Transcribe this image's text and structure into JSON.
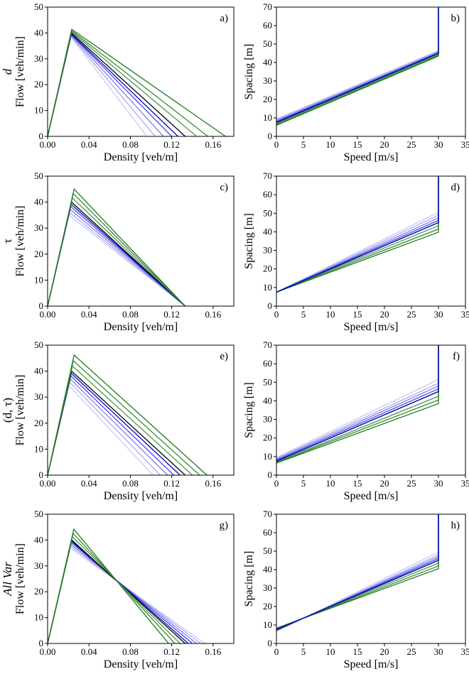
{
  "chart_data": [
    {
      "panel": "a)",
      "row_label": "d",
      "row_label_italic": true,
      "type": "line",
      "xlabel": "Density [veh/m]",
      "ylabel": "Flow [veh/min]",
      "xlim": [
        0,
        0.18
      ],
      "ylim": [
        0,
        50
      ],
      "xticks": [
        "0.00",
        "0.04",
        "0.08",
        "0.12",
        "0.16"
      ],
      "yticks": [
        "0",
        "10",
        "20",
        "30",
        "40",
        "50"
      ],
      "series": [
        {
          "color": "#c9c9f2",
          "x": [
            0,
            0.0225,
            0.096
          ],
          "y": [
            0,
            38.5,
            0
          ]
        },
        {
          "color": "#a9a9ee",
          "x": [
            0,
            0.0226,
            0.104
          ],
          "y": [
            0,
            38.8,
            0
          ]
        },
        {
          "color": "#7f7fe8",
          "x": [
            0,
            0.0227,
            0.112
          ],
          "y": [
            0,
            39.1,
            0
          ]
        },
        {
          "color": "#4848e0",
          "x": [
            0,
            0.0228,
            0.12
          ],
          "y": [
            0,
            39.4,
            0
          ]
        },
        {
          "color": "#0000cc",
          "x": [
            0,
            0.0229,
            0.126
          ],
          "y": [
            0,
            39.6,
            0
          ]
        },
        {
          "color": "#000000",
          "x": [
            0,
            0.023,
            0.133
          ],
          "y": [
            0,
            40.0,
            0
          ]
        },
        {
          "color": "#4a9a4a",
          "x": [
            0,
            0.0231,
            0.144
          ],
          "y": [
            0,
            40.5,
            0
          ]
        },
        {
          "color": "#3a8a3a",
          "x": [
            0,
            0.0232,
            0.155
          ],
          "y": [
            0,
            40.9,
            0
          ]
        },
        {
          "color": "#1f7a1f",
          "x": [
            0,
            0.0233,
            0.172
          ],
          "y": [
            0,
            41.4,
            0
          ]
        }
      ]
    },
    {
      "panel": "b)",
      "type": "line",
      "xlabel": "Speed [m/s]",
      "ylabel": "Spacing [m]",
      "xlim": [
        0,
        35
      ],
      "ylim": [
        0,
        70
      ],
      "xticks": [
        "0",
        "5",
        "10",
        "15",
        "20",
        "25",
        "30",
        "35"
      ],
      "yticks": [
        "0",
        "10",
        "20",
        "30",
        "40",
        "50",
        "60",
        "70"
      ],
      "series": [
        {
          "color": "#c9c9f2",
          "x": [
            0,
            30,
            30
          ],
          "y": [
            9.5,
            46.5,
            70
          ]
        },
        {
          "color": "#a9a9ee",
          "x": [
            0,
            30,
            30
          ],
          "y": [
            9.0,
            46.0,
            70
          ]
        },
        {
          "color": "#7f7fe8",
          "x": [
            0,
            30,
            30
          ],
          "y": [
            8.5,
            45.6,
            70
          ]
        },
        {
          "color": "#4848e0",
          "x": [
            0,
            30,
            30
          ],
          "y": [
            8.0,
            45.2,
            70
          ]
        },
        {
          "color": "#000000",
          "x": [
            0,
            30,
            30
          ],
          "y": [
            7.5,
            45.0,
            70
          ]
        },
        {
          "color": "#4a9a4a",
          "x": [
            0,
            30,
            30
          ],
          "y": [
            7.0,
            44.5,
            70
          ]
        },
        {
          "color": "#3a8a3a",
          "x": [
            0,
            30,
            30
          ],
          "y": [
            6.5,
            44.0,
            70
          ]
        },
        {
          "color": "#1f7a1f",
          "x": [
            0,
            30,
            30
          ],
          "y": [
            6.0,
            43.5,
            70
          ]
        },
        {
          "color": "#0000cc",
          "x": [
            0,
            30,
            30
          ],
          "y": [
            7.5,
            45.0,
            70
          ]
        }
      ]
    },
    {
      "panel": "c)",
      "row_label": "τ",
      "row_label_italic": false,
      "type": "line",
      "xlabel": "Density [veh/m]",
      "ylabel": "Flow [veh/min]",
      "xlim": [
        0,
        0.18
      ],
      "ylim": [
        0,
        50
      ],
      "xticks": [
        "0.00",
        "0.04",
        "0.08",
        "0.12",
        "0.16"
      ],
      "yticks": [
        "0",
        "10",
        "20",
        "30",
        "40",
        "50"
      ],
      "series": [
        {
          "color": "#c9c9f2",
          "x": [
            0,
            0.0205,
            0.133
          ],
          "y": [
            0,
            35.0,
            0
          ]
        },
        {
          "color": "#a9a9ee",
          "x": [
            0,
            0.0212,
            0.133
          ],
          "y": [
            0,
            36.0,
            0
          ]
        },
        {
          "color": "#7f7fe8",
          "x": [
            0,
            0.0218,
            0.133
          ],
          "y": [
            0,
            37.2,
            0
          ]
        },
        {
          "color": "#4848e0",
          "x": [
            0,
            0.0224,
            0.133
          ],
          "y": [
            0,
            38.3,
            0
          ]
        },
        {
          "color": "#0000cc",
          "x": [
            0,
            0.0228,
            0.133
          ],
          "y": [
            0,
            39.2,
            0
          ]
        },
        {
          "color": "#000000",
          "x": [
            0,
            0.0232,
            0.133
          ],
          "y": [
            0,
            40.0,
            0
          ]
        },
        {
          "color": "#4a9a4a",
          "x": [
            0,
            0.024,
            0.133
          ],
          "y": [
            0,
            41.6,
            0
          ]
        },
        {
          "color": "#3a8a3a",
          "x": [
            0,
            0.0248,
            0.133
          ],
          "y": [
            0,
            43.3,
            0
          ]
        },
        {
          "color": "#1f7a1f",
          "x": [
            0,
            0.0256,
            0.133
          ],
          "y": [
            0,
            45.0,
            0
          ]
        }
      ]
    },
    {
      "panel": "d)",
      "type": "line",
      "xlabel": "Speed [m/s]",
      "ylabel": "Spacing [m]",
      "xlim": [
        0,
        35
      ],
      "ylim": [
        0,
        70
      ],
      "xticks": [
        "0",
        "5",
        "10",
        "15",
        "20",
        "25",
        "30",
        "35"
      ],
      "yticks": [
        "0",
        "10",
        "20",
        "30",
        "40",
        "50",
        "60",
        "70"
      ],
      "series": [
        {
          "color": "#c9c9f2",
          "x": [
            0,
            30,
            30
          ],
          "y": [
            7.5,
            50.5,
            70
          ]
        },
        {
          "color": "#a9a9ee",
          "x": [
            0,
            30,
            30
          ],
          "y": [
            7.5,
            49.0,
            70
          ]
        },
        {
          "color": "#7f7fe8",
          "x": [
            0,
            30,
            30
          ],
          "y": [
            7.5,
            47.5,
            70
          ]
        },
        {
          "color": "#4848e0",
          "x": [
            0,
            30,
            30
          ],
          "y": [
            7.5,
            46.2,
            70
          ]
        },
        {
          "color": "#000000",
          "x": [
            0,
            30,
            30
          ],
          "y": [
            7.5,
            45.0,
            70
          ]
        },
        {
          "color": "#4a9a4a",
          "x": [
            0,
            30,
            30
          ],
          "y": [
            7.5,
            43.3,
            70
          ]
        },
        {
          "color": "#3a8a3a",
          "x": [
            0,
            30,
            30
          ],
          "y": [
            7.5,
            41.5,
            70
          ]
        },
        {
          "color": "#1f7a1f",
          "x": [
            0,
            30,
            30
          ],
          "y": [
            7.5,
            39.8,
            70
          ]
        },
        {
          "color": "#0000cc",
          "x": [
            0,
            30,
            30
          ],
          "y": [
            7.5,
            45.0,
            70
          ]
        }
      ]
    },
    {
      "panel": "e)",
      "row_label": "(d, τ)",
      "row_label_italic": false,
      "type": "line",
      "xlabel": "Density [veh/m]",
      "ylabel": "Flow [veh/min]",
      "xlim": [
        0,
        0.18
      ],
      "ylim": [
        0,
        50
      ],
      "xticks": [
        "0.00",
        "0.04",
        "0.08",
        "0.12",
        "0.16"
      ],
      "yticks": [
        "0",
        "10",
        "20",
        "30",
        "40",
        "50"
      ],
      "series": [
        {
          "color": "#c9c9f2",
          "x": [
            0,
            0.0205,
            0.102
          ],
          "y": [
            0,
            34.5,
            0
          ]
        },
        {
          "color": "#a9a9ee",
          "x": [
            0,
            0.0212,
            0.109
          ],
          "y": [
            0,
            35.8,
            0
          ]
        },
        {
          "color": "#7f7fe8",
          "x": [
            0,
            0.0218,
            0.116
          ],
          "y": [
            0,
            37.0,
            0
          ]
        },
        {
          "color": "#4848e0",
          "x": [
            0,
            0.0224,
            0.122
          ],
          "y": [
            0,
            38.2,
            0
          ]
        },
        {
          "color": "#0000cc",
          "x": [
            0,
            0.0228,
            0.128
          ],
          "y": [
            0,
            39.2,
            0
          ]
        },
        {
          "color": "#000000",
          "x": [
            0,
            0.0232,
            0.133
          ],
          "y": [
            0,
            40.0,
            0
          ]
        },
        {
          "color": "#4a9a4a",
          "x": [
            0,
            0.024,
            0.14
          ],
          "y": [
            0,
            42.0,
            0
          ]
        },
        {
          "color": "#3a8a3a",
          "x": [
            0,
            0.0248,
            0.147
          ],
          "y": [
            0,
            44.0,
            0
          ]
        },
        {
          "color": "#1f7a1f",
          "x": [
            0,
            0.0256,
            0.154
          ],
          "y": [
            0,
            46.2,
            0
          ]
        }
      ]
    },
    {
      "panel": "f)",
      "type": "line",
      "xlabel": "Speed [m/s]",
      "ylabel": "Spacing [m]",
      "xlim": [
        0,
        35
      ],
      "ylim": [
        0,
        70
      ],
      "xticks": [
        "0",
        "5",
        "10",
        "15",
        "20",
        "25",
        "30",
        "35"
      ],
      "yticks": [
        "0",
        "10",
        "20",
        "30",
        "40",
        "50",
        "60",
        "70"
      ],
      "series": [
        {
          "color": "#c9c9f2",
          "x": [
            0,
            30,
            30
          ],
          "y": [
            9.5,
            51.5,
            70
          ]
        },
        {
          "color": "#a9a9ee",
          "x": [
            0,
            30,
            30
          ],
          "y": [
            9.0,
            49.5,
            70
          ]
        },
        {
          "color": "#7f7fe8",
          "x": [
            0,
            30,
            30
          ],
          "y": [
            8.5,
            48.0,
            70
          ]
        },
        {
          "color": "#4848e0",
          "x": [
            0,
            30,
            30
          ],
          "y": [
            8.0,
            46.5,
            70
          ]
        },
        {
          "color": "#000000",
          "x": [
            0,
            30,
            30
          ],
          "y": [
            7.5,
            45.0,
            70
          ]
        },
        {
          "color": "#4a9a4a",
          "x": [
            0,
            30,
            30
          ],
          "y": [
            7.0,
            42.5,
            70
          ]
        },
        {
          "color": "#3a8a3a",
          "x": [
            0,
            30,
            30
          ],
          "y": [
            6.8,
            40.5,
            70
          ]
        },
        {
          "color": "#1f7a1f",
          "x": [
            0,
            30,
            30
          ],
          "y": [
            6.5,
            38.5,
            70
          ]
        },
        {
          "color": "#0000cc",
          "x": [
            0,
            30,
            30
          ],
          "y": [
            7.5,
            45.0,
            70
          ]
        }
      ]
    },
    {
      "panel": "g)",
      "row_label": "All Var",
      "row_label_italic": true,
      "type": "line",
      "xlabel": "Density [veh/m]",
      "ylabel": "Flow [veh/min]",
      "xlim": [
        0,
        0.18
      ],
      "ylim": [
        0,
        50
      ],
      "xticks": [
        "0.00",
        "0.04",
        "0.08",
        "0.12",
        "0.16"
      ],
      "yticks": [
        "0",
        "10",
        "20",
        "30",
        "40",
        "50"
      ],
      "series": [
        {
          "color": "#c9c9f2",
          "x": [
            0,
            0.0215,
            0.152
          ],
          "y": [
            0,
            37.0,
            0
          ]
        },
        {
          "color": "#a9a9ee",
          "x": [
            0,
            0.022,
            0.148
          ],
          "y": [
            0,
            37.7,
            0
          ]
        },
        {
          "color": "#7f7fe8",
          "x": [
            0,
            0.0224,
            0.144
          ],
          "y": [
            0,
            38.4,
            0
          ]
        },
        {
          "color": "#4848e0",
          "x": [
            0,
            0.0228,
            0.14
          ],
          "y": [
            0,
            39.1,
            0
          ]
        },
        {
          "color": "#0000cc",
          "x": [
            0,
            0.0231,
            0.136
          ],
          "y": [
            0,
            39.6,
            0
          ]
        },
        {
          "color": "#000000",
          "x": [
            0,
            0.0234,
            0.133
          ],
          "y": [
            0,
            40.0,
            0
          ]
        },
        {
          "color": "#4a9a4a",
          "x": [
            0,
            0.024,
            0.128
          ],
          "y": [
            0,
            41.3,
            0
          ]
        },
        {
          "color": "#3a8a3a",
          "x": [
            0,
            0.0246,
            0.123
          ],
          "y": [
            0,
            42.6,
            0
          ]
        },
        {
          "color": "#1f7a1f",
          "x": [
            0,
            0.0253,
            0.117
          ],
          "y": [
            0,
            44.2,
            0
          ]
        }
      ]
    },
    {
      "panel": "h)",
      "type": "line",
      "xlabel": "Speed [m/s]",
      "ylabel": "Spacing [m]",
      "xlim": [
        0,
        35
      ],
      "ylim": [
        0,
        70
      ],
      "xticks": [
        "0",
        "5",
        "10",
        "15",
        "20",
        "25",
        "30",
        "35"
      ],
      "yticks": [
        "0",
        "10",
        "20",
        "30",
        "40",
        "50",
        "60",
        "70"
      ],
      "series": [
        {
          "color": "#c9c9f2",
          "x": [
            0,
            30,
            30
          ],
          "y": [
            6.5,
            49.5,
            70
          ]
        },
        {
          "color": "#a9a9ee",
          "x": [
            0,
            30,
            30
          ],
          "y": [
            6.8,
            48.0,
            70
          ]
        },
        {
          "color": "#7f7fe8",
          "x": [
            0,
            30,
            30
          ],
          "y": [
            7.0,
            47.0,
            70
          ]
        },
        {
          "color": "#4848e0",
          "x": [
            0,
            30,
            30
          ],
          "y": [
            7.2,
            46.0,
            70
          ]
        },
        {
          "color": "#000000",
          "x": [
            0,
            30,
            30
          ],
          "y": [
            7.5,
            45.0,
            70
          ]
        },
        {
          "color": "#4a9a4a",
          "x": [
            0,
            30,
            30
          ],
          "y": [
            7.8,
            43.5,
            70
          ]
        },
        {
          "color": "#3a8a3a",
          "x": [
            0,
            30,
            30
          ],
          "y": [
            8.0,
            42.0,
            70
          ]
        },
        {
          "color": "#1f7a1f",
          "x": [
            0,
            30,
            30
          ],
          "y": [
            8.3,
            40.5,
            70
          ]
        },
        {
          "color": "#0000cc",
          "x": [
            0,
            30,
            30
          ],
          "y": [
            7.5,
            45.0,
            70
          ]
        }
      ]
    }
  ]
}
